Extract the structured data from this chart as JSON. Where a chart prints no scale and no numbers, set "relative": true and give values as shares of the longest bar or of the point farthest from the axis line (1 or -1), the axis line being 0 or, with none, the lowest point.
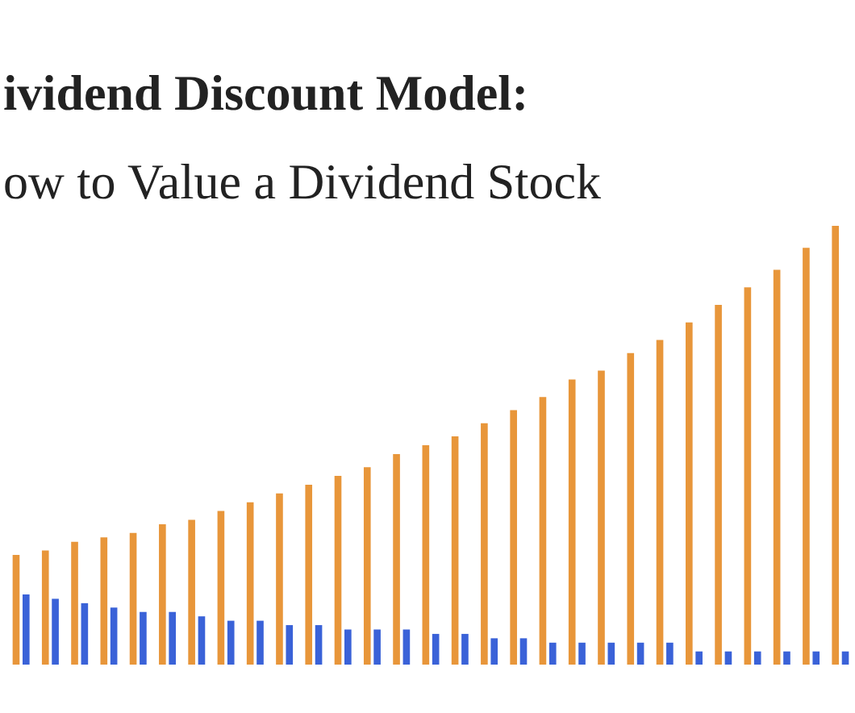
{
  "chart_data": {
    "type": "bar",
    "title": "ividend Discount Model:",
    "subtitle": "ow to Value a Dividend Stock",
    "relative": true,
    "categories": [
      null,
      null,
      null,
      null,
      null,
      null,
      null,
      null,
      null,
      null,
      null,
      null,
      null,
      null,
      null,
      null,
      null,
      null,
      null,
      null,
      null,
      null,
      null,
      null,
      null,
      null,
      null,
      null,
      null
    ],
    "series": [
      {
        "color": "#e8963a",
        "values": [
          0.25,
          0.26,
          0.28,
          0.29,
          0.3,
          0.32,
          0.33,
          0.35,
          0.37,
          0.39,
          0.41,
          0.43,
          0.45,
          0.48,
          0.5,
          0.52,
          0.55,
          0.58,
          0.61,
          0.65,
          0.67,
          0.71,
          0.74,
          0.78,
          0.82,
          0.86,
          0.9,
          0.95,
          1
        ]
      },
      {
        "color": "#3a62d8",
        "values": [
          0.16,
          0.15,
          0.14,
          0.13,
          0.12,
          0.12,
          0.11,
          0.1,
          0.1,
          0.09,
          0.09,
          0.08,
          0.08,
          0.08,
          0.07,
          0.07,
          0.06,
          0.06,
          0.05,
          0.05,
          0.05,
          0.05,
          0.05,
          0.03,
          0.03,
          0.03,
          0.03,
          0.03,
          0.03
        ]
      }
    ]
  }
}
